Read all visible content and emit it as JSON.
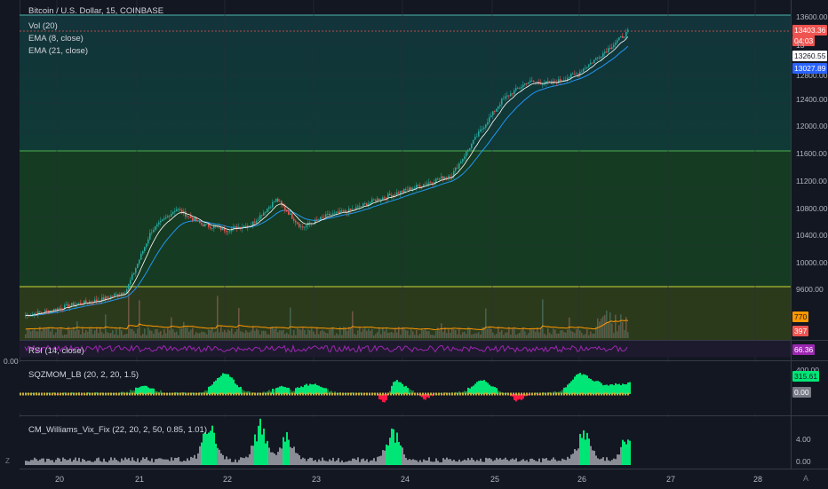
{
  "legend": {
    "title": "Bitcoin / U.S. Dollar, 15, COINBASE",
    "vol": "Vol (20)",
    "ema8": "EMA (8, close)",
    "ema21": "EMA (21, close)",
    "rsi": "RSI (14, close)",
    "sqz": "SQZMOM_LB (20, 2, 20, 1.5)",
    "vix": "CM_Williams_Vix_Fix (22, 20, 2, 50, 0.85, 1.01)"
  },
  "price_axis": {
    "ticks": [
      "13600.00",
      "12800.00",
      "12400.00",
      "12000.00",
      "11600.00",
      "11200.00",
      "10800.00",
      "10400.00",
      "10000.00",
      "9600.00"
    ],
    "labels": {
      "last": "13403.36",
      "countdown": "04:03",
      "partial": "13",
      "ema8": "13260.55",
      "ema21": "13027.89",
      "vol_ma": "770",
      "vol": "397"
    }
  },
  "rsi_axis": {
    "value": "66.36"
  },
  "left_value": "0.00",
  "sqz_axis": {
    "top": "400.00",
    "value": "315.61",
    "zero": "0.00"
  },
  "vix_axis": {
    "ticks": [
      "4.00",
      "0.00"
    ]
  },
  "time_axis": {
    "labels": [
      "20",
      "21",
      "22",
      "23",
      "24",
      "25",
      "26",
      "27",
      "28"
    ]
  },
  "chart_data": {
    "type": "line",
    "series_name": "Bitcoin / U.S. Dollar",
    "x": [
      "20",
      "20.5",
      "21",
      "21.5",
      "21.8",
      "22",
      "22.3",
      "22.6",
      "23",
      "23.4",
      "23.7",
      "24",
      "24.4",
      "24.8",
      "25",
      "25.3",
      "25.6",
      "25.9",
      "26",
      "26.1",
      "26.2",
      "26.3",
      "26.35",
      "26.45",
      "26.5"
    ],
    "close": [
      9420,
      9490,
      9580,
      9640,
      9760,
      10600,
      10920,
      10700,
      10620,
      10700,
      11050,
      10650,
      10820,
      10900,
      11050,
      11160,
      11280,
      11400,
      11950,
      12450,
      12700,
      12680,
      12820,
      13100,
      13403
    ],
    "ylim": [
      9300,
      13700
    ],
    "colors": {
      "up": "#26a69a",
      "down": "#ef5350",
      "ema8": "#ffffff",
      "ema21": "#2196f3",
      "last": "#ef5350"
    },
    "volume_ma": "770",
    "rsi": "66.36"
  }
}
